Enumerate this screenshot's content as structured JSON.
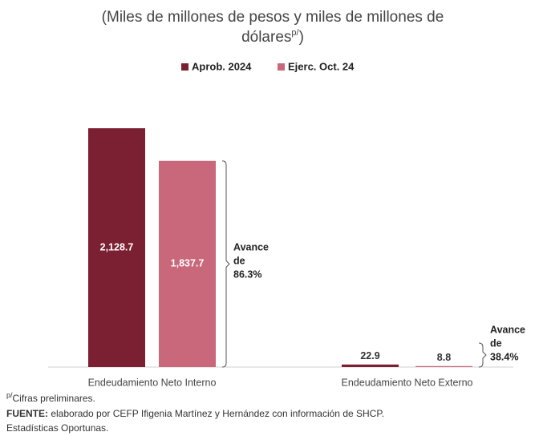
{
  "chart_data": {
    "type": "bar",
    "title": "(Miles de millones de pesos y miles de millones de dólares",
    "title_superscript": "p/",
    "title_end": ")",
    "categories": [
      "Endeudamiento Neto Interno",
      "Endeudamiento Neto Externo"
    ],
    "series": [
      {
        "name": "Aprob. 2024",
        "color": "#7b1f32",
        "values": [
          2128.7,
          22.9
        ],
        "value_labels": [
          "2,128.7",
          "22.9"
        ]
      },
      {
        "name": "Ejerc. Oct. 24",
        "color": "#c9687a",
        "values": [
          1837.7,
          8.8
        ],
        "value_labels": [
          "1,837.7",
          "8.8"
        ]
      }
    ],
    "annotations": [
      [
        "Avance",
        "de",
        "86.3%"
      ],
      [
        "Avance",
        "de",
        "38.4%"
      ]
    ],
    "footnote_superscript": "p/",
    "footnote": "Cifras preliminares.",
    "source_label": "FUENTE:",
    "source_text": "elaborado por CEFP Ifigenia Martínez y Hernández con información de SHCP.",
    "source_text_2": "Estadísticas Oportunas."
  }
}
